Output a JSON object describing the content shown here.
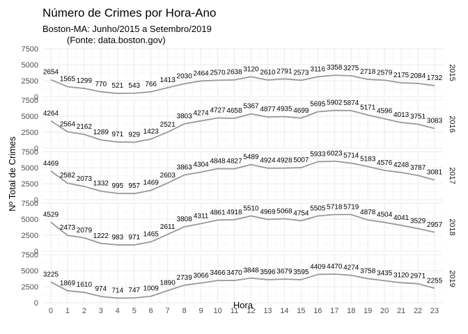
{
  "chart_data": {
    "type": "line",
    "title": "Número de Crimes por Hora-Ano",
    "subtitle_line1": "Boston-MA: Junho/2015 a Setembro/2019",
    "subtitle_line2": "(Fonte: data.boston.gov)",
    "xlabel": "Hora",
    "ylabel": "Nº Total de Crimes",
    "x": [
      0,
      1,
      2,
      3,
      4,
      5,
      6,
      7,
      8,
      9,
      10,
      11,
      12,
      13,
      14,
      15,
      16,
      17,
      18,
      19,
      20,
      21,
      22,
      23
    ],
    "y_ticks": [
      0,
      2500,
      5000,
      7500
    ],
    "ylim": [
      0,
      7500
    ],
    "facet_by": "year",
    "grid": true,
    "line_color": "#999999",
    "panels": [
      {
        "label": "2015",
        "values": [
          2654,
          1565,
          1299,
          770,
          521,
          543,
          766,
          1413,
          2030,
          2464,
          2570,
          2638,
          3120,
          2610,
          2791,
          2573,
          3116,
          3358,
          3275,
          2718,
          2579,
          2175,
          2084,
          1732
        ]
      },
      {
        "label": "2016",
        "values": [
          4264,
          2564,
          2162,
          1289,
          971,
          929,
          1423,
          2521,
          3803,
          4274,
          4727,
          4658,
          5367,
          4877,
          4935,
          4699,
          5695,
          5902,
          5874,
          5171,
          4596,
          4013,
          3751,
          3083
        ]
      },
      {
        "label": "2017",
        "values": [
          4469,
          2582,
          2073,
          1332,
          995,
          957,
          1469,
          2603,
          3863,
          4304,
          4848,
          4827,
          5489,
          4924,
          4928,
          5007,
          5933,
          6023,
          5714,
          5183,
          4576,
          4248,
          3787,
          3081
        ]
      },
      {
        "label": "2018",
        "values": [
          4529,
          2473,
          2079,
          1222,
          983,
          971,
          1465,
          2611,
          3808,
          4311,
          4861,
          4918,
          5510,
          4969,
          5068,
          4754,
          5505,
          5718,
          5719,
          4878,
          4504,
          4041,
          3529,
          2957
        ]
      },
      {
        "label": "2019",
        "values": [
          3225,
          1869,
          1610,
          974,
          714,
          747,
          1009,
          1890,
          2739,
          3066,
          3466,
          3470,
          3848,
          3596,
          3679,
          3595,
          4409,
          4470,
          4274,
          3758,
          3435,
          3120,
          2971,
          2255
        ]
      }
    ]
  }
}
